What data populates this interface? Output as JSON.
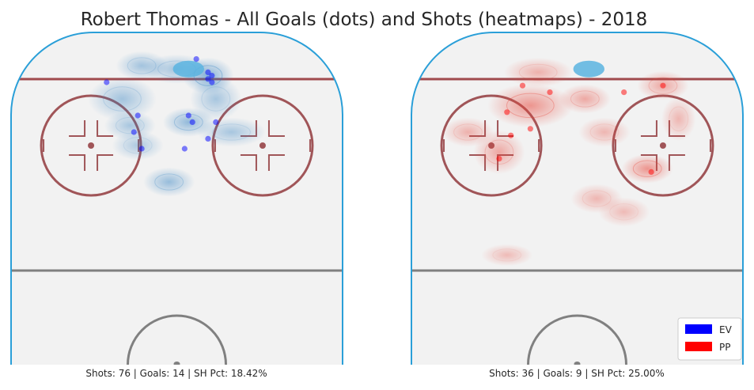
{
  "figure": {
    "title": "Robert Thomas - All Goals (dots) and Shots (heatmaps) - 2018"
  },
  "rink_colors": {
    "boards": "#2a9fd8",
    "ice": "#f2f2f2",
    "goal_line": "#a04b4e",
    "faceoff": "#a05558",
    "center_line": "#808080"
  },
  "legend": {
    "placement": "bottom-right",
    "items": [
      {
        "label": "EV",
        "color": "#0000ff"
      },
      {
        "label": "PP",
        "color": "#ff0000"
      }
    ]
  },
  "chart_data": [
    {
      "type": "scatter",
      "situation": "EV",
      "caption": "Shots: 76 | Goals: 14 | SH Pct: 18.42%",
      "shots": 76,
      "goals": 14,
      "sh_pct": 18.42,
      "heatmap_color": "#2f7fc1",
      "dot_color": "#0000ff",
      "xlim": [
        -42.5,
        42.5
      ],
      "ylim": [
        0,
        100
      ],
      "goal_points": [
        {
          "x": -18,
          "y": 85
        },
        {
          "x": 5,
          "y": 92
        },
        {
          "x": 8,
          "y": 88
        },
        {
          "x": 9,
          "y": 87
        },
        {
          "x": 8,
          "y": 86
        },
        {
          "x": 9,
          "y": 85
        },
        {
          "x": -10,
          "y": 75
        },
        {
          "x": 3,
          "y": 75
        },
        {
          "x": 4,
          "y": 73
        },
        {
          "x": 10,
          "y": 73
        },
        {
          "x": -11,
          "y": 70
        },
        {
          "x": 8,
          "y": 68
        },
        {
          "x": -9,
          "y": 65
        },
        {
          "x": 2,
          "y": 65
        }
      ],
      "shot_density": [
        {
          "x": -9,
          "y": 90,
          "sx": 3,
          "sy": 2,
          "w": 0.5
        },
        {
          "x": 8,
          "y": 87,
          "sx": 3,
          "sy": 2.5,
          "w": 1.0
        },
        {
          "x": 0,
          "y": 89,
          "sx": 4,
          "sy": 2,
          "w": 0.5
        },
        {
          "x": -14,
          "y": 80,
          "sx": 4,
          "sy": 3,
          "w": 0.5
        },
        {
          "x": 3,
          "y": 73,
          "sx": 3,
          "sy": 2,
          "w": 0.8
        },
        {
          "x": -12,
          "y": 72,
          "sx": 3,
          "sy": 2,
          "w": 0.4
        },
        {
          "x": 10,
          "y": 80,
          "sx": 3,
          "sy": 3,
          "w": 0.4
        },
        {
          "x": 14,
          "y": 70,
          "sx": 4,
          "sy": 2,
          "w": 0.4
        },
        {
          "x": -10,
          "y": 66,
          "sx": 3,
          "sy": 2,
          "w": 0.3
        },
        {
          "x": -2,
          "y": 55,
          "sx": 3,
          "sy": 2,
          "w": 0.7
        }
      ],
      "high_danger_blob": {
        "x": 3,
        "y": 89,
        "color": "#5ab4e0"
      }
    },
    {
      "type": "scatter",
      "situation": "PP",
      "caption": "Shots: 36 | Goals: 9 | SH Pct: 25.00%",
      "shots": 36,
      "goals": 9,
      "sh_pct": 25.0,
      "heatmap_color": "#e8483c",
      "dot_color": "#ff0000",
      "xlim": [
        -42.5,
        42.5
      ],
      "ylim": [
        0,
        100
      ],
      "goal_points": [
        {
          "x": -14,
          "y": 84
        },
        {
          "x": -7,
          "y": 82
        },
        {
          "x": 12,
          "y": 82
        },
        {
          "x": 22,
          "y": 84
        },
        {
          "x": -18,
          "y": 76
        },
        {
          "x": -17,
          "y": 69
        },
        {
          "x": -12,
          "y": 71
        },
        {
          "x": -20,
          "y": 62
        },
        {
          "x": 19,
          "y": 58
        }
      ],
      "shot_density": [
        {
          "x": -12,
          "y": 78,
          "sx": 5,
          "sy": 3,
          "w": 1.0
        },
        {
          "x": -20,
          "y": 64,
          "sx": 3,
          "sy": 3,
          "w": 0.6
        },
        {
          "x": 18,
          "y": 59,
          "sx": 3,
          "sy": 2,
          "w": 1.0
        },
        {
          "x": 2,
          "y": 80,
          "sx": 3,
          "sy": 2,
          "w": 0.6
        },
        {
          "x": 22,
          "y": 84,
          "sx": 3,
          "sy": 2,
          "w": 0.6
        },
        {
          "x": -28,
          "y": 70,
          "sx": 3,
          "sy": 2,
          "w": 0.4
        },
        {
          "x": -10,
          "y": 88,
          "sx": 4,
          "sy": 2,
          "w": 0.4
        },
        {
          "x": 7,
          "y": 70,
          "sx": 3,
          "sy": 2,
          "w": 0.3
        },
        {
          "x": 5,
          "y": 50,
          "sx": 3,
          "sy": 2,
          "w": 0.3
        },
        {
          "x": 12,
          "y": 46,
          "sx": 3,
          "sy": 2,
          "w": 0.2
        },
        {
          "x": -18,
          "y": 33,
          "sx": 3,
          "sy": 1.5,
          "w": 0.2
        },
        {
          "x": 26,
          "y": 74,
          "sx": 2,
          "sy": 3,
          "w": 0.3
        }
      ],
      "high_danger_blob": {
        "x": 3,
        "y": 89,
        "color": "#5ab4e0"
      }
    }
  ]
}
